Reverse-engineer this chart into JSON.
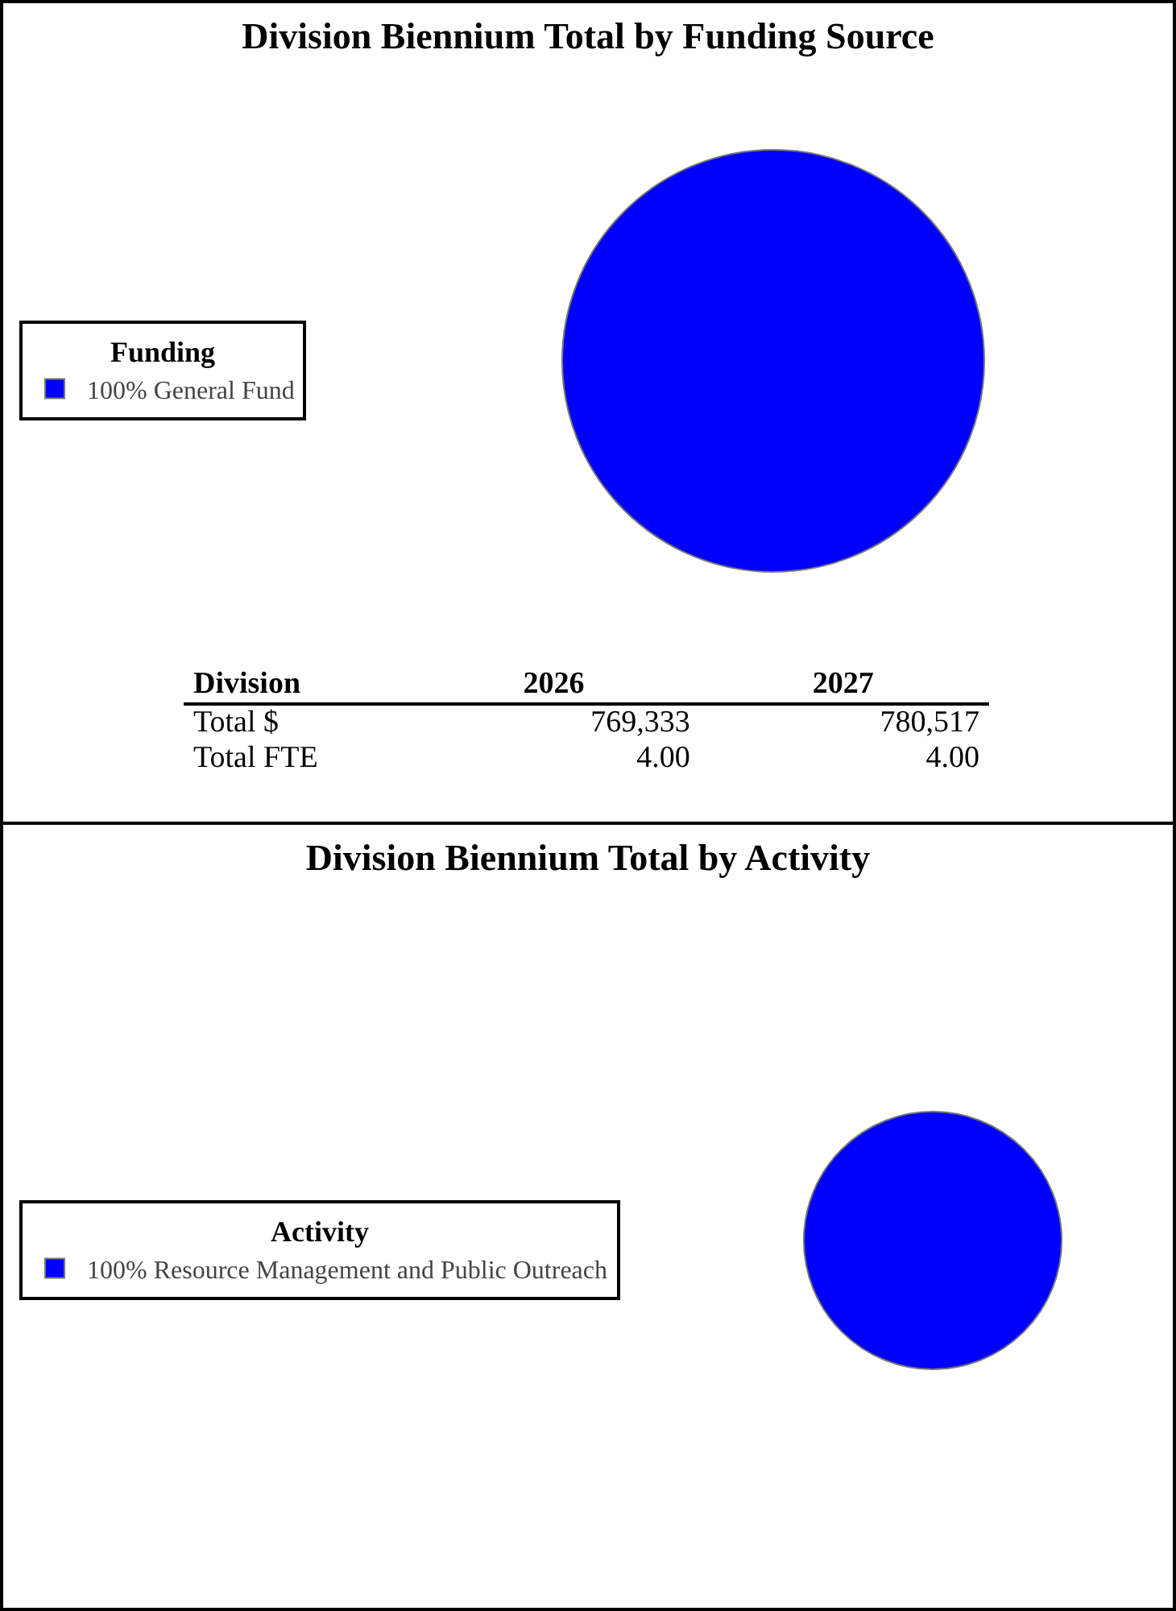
{
  "chart_data": [
    {
      "type": "pie",
      "title": "Division Biennium Total by Funding Source",
      "legend_title": "Funding",
      "legend": "left",
      "categories": [
        "General Fund"
      ],
      "values": [
        100
      ],
      "value_labels": [
        "100%"
      ],
      "colors": [
        "#0000ff"
      ]
    },
    {
      "type": "other",
      "xlabel": "Division",
      "categories": [
        "Total $",
        "Total FTE"
      ],
      "series": [
        {
          "name": "2026",
          "values": [
            769333,
            4
          ],
          "value_labels": [
            "769,333",
            "4.00"
          ]
        },
        {
          "name": "2027",
          "values": [
            780517,
            4
          ],
          "value_labels": [
            "780,517",
            "4.00"
          ]
        }
      ]
    },
    {
      "type": "pie",
      "title": "Division Biennium Total by Activity",
      "legend_title": "Activity",
      "legend": "left",
      "categories": [
        "Resource Management and Public Outreach"
      ],
      "values": [
        100
      ],
      "value_labels": [
        "100%"
      ],
      "colors": [
        "#0000ff"
      ]
    }
  ]
}
